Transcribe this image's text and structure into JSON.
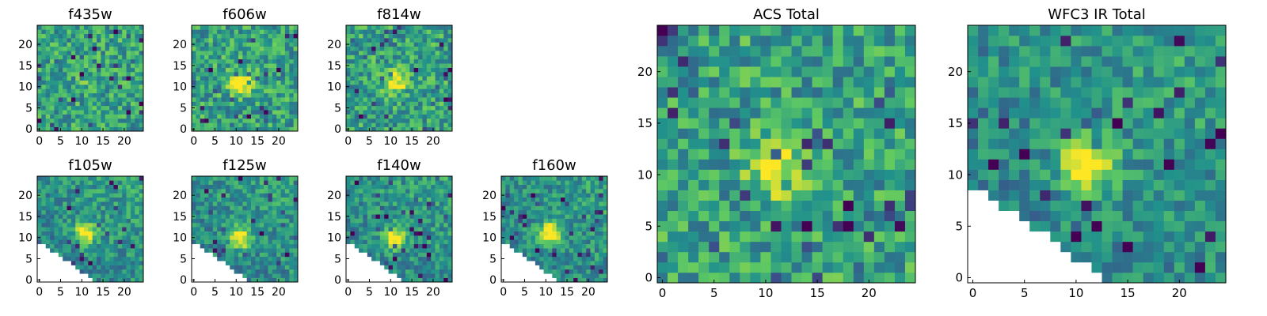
{
  "figure": {
    "background": "#ffffff",
    "colormap": "viridis",
    "colormap_stops": [
      "#440154",
      "#3b528b",
      "#21918c",
      "#5ec962",
      "#fde725"
    ]
  },
  "chart_data": [
    {
      "type": "heatmap",
      "title": "f435w",
      "grid_size": 25,
      "xlim": [
        0,
        24
      ],
      "ylim": [
        0,
        24
      ],
      "xticks": [
        "0",
        "5",
        "10",
        "15",
        "20"
      ],
      "yticks": [
        "0",
        "5",
        "10",
        "15",
        "20"
      ],
      "mask": "none",
      "source": {
        "x": 12,
        "y": 11,
        "strength": 0.1
      }
    },
    {
      "type": "heatmap",
      "title": "f606w",
      "grid_size": 25,
      "xlim": [
        0,
        24
      ],
      "ylim": [
        0,
        24
      ],
      "xticks": [
        "0",
        "5",
        "10",
        "15",
        "20"
      ],
      "yticks": [
        "0",
        "5",
        "10",
        "15",
        "20"
      ],
      "mask": "none",
      "source": {
        "x": 11,
        "y": 11,
        "strength": 0.55
      }
    },
    {
      "type": "heatmap",
      "title": "f814w",
      "grid_size": 25,
      "xlim": [
        0,
        24
      ],
      "ylim": [
        0,
        24
      ],
      "xticks": [
        "0",
        "5",
        "10",
        "15",
        "20"
      ],
      "yticks": [
        "0",
        "5",
        "10",
        "15",
        "20"
      ],
      "mask": "none",
      "source": {
        "x": 11,
        "y": 11,
        "strength": 0.5
      }
    },
    {
      "type": "heatmap",
      "title": "f105w",
      "grid_size": 25,
      "xlim": [
        0,
        24
      ],
      "ylim": [
        0,
        24
      ],
      "xticks": [
        "0",
        "5",
        "10",
        "15",
        "20"
      ],
      "yticks": [
        "0",
        "5",
        "10",
        "15",
        "20"
      ],
      "mask": "lower-left-triangle",
      "source": {
        "x": 11,
        "y": 11,
        "strength": 0.6
      }
    },
    {
      "type": "heatmap",
      "title": "f125w",
      "grid_size": 25,
      "xlim": [
        0,
        24
      ],
      "ylim": [
        0,
        24
      ],
      "xticks": [
        "0",
        "5",
        "10",
        "15",
        "20"
      ],
      "yticks": [
        "0",
        "5",
        "10",
        "15",
        "20"
      ],
      "mask": "lower-left-triangle",
      "source": {
        "x": 11,
        "y": 10,
        "strength": 0.6
      }
    },
    {
      "type": "heatmap",
      "title": "f140w",
      "grid_size": 25,
      "xlim": [
        0,
        24
      ],
      "ylim": [
        0,
        24
      ],
      "xticks": [
        "0",
        "5",
        "10",
        "15",
        "20"
      ],
      "yticks": [
        "0",
        "5",
        "10",
        "15",
        "20"
      ],
      "mask": "lower-left-triangle",
      "source": {
        "x": 11,
        "y": 10,
        "strength": 0.65
      }
    },
    {
      "type": "heatmap",
      "title": "f160w",
      "grid_size": 25,
      "xlim": [
        0,
        24
      ],
      "ylim": [
        0,
        24
      ],
      "xticks": [
        "0",
        "5",
        "10",
        "15",
        "20"
      ],
      "yticks": [
        "0",
        "5",
        "10",
        "15",
        "20"
      ],
      "mask": "lower-left-triangle",
      "source": {
        "x": 11,
        "y": 11,
        "strength": 0.7
      }
    },
    {
      "type": "heatmap",
      "title": "ACS Total",
      "grid_size": 25,
      "xlim": [
        0,
        24
      ],
      "ylim": [
        0,
        24
      ],
      "xticks": [
        "0",
        "5",
        "10",
        "15",
        "20"
      ],
      "yticks": [
        "0",
        "5",
        "10",
        "15",
        "20"
      ],
      "mask": "none",
      "source": {
        "x": 11,
        "y": 10.5,
        "strength": 0.5
      }
    },
    {
      "type": "heatmap",
      "title": "WFC3 IR Total",
      "grid_size": 25,
      "xlim": [
        0,
        24
      ],
      "ylim": [
        0,
        24
      ],
      "xticks": [
        "0",
        "5",
        "10",
        "15",
        "20"
      ],
      "yticks": [
        "0",
        "5",
        "10",
        "15",
        "20"
      ],
      "mask": "lower-left-triangle",
      "source": {
        "x": 11,
        "y": 11,
        "strength": 0.6
      }
    }
  ]
}
